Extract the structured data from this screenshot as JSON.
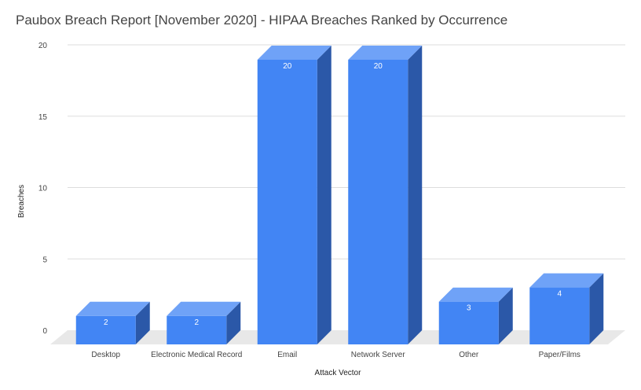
{
  "chart_data": {
    "type": "bar",
    "title": "Paubox Breach Report [November 2020] - HIPAA Breaches Ranked by Occurrence",
    "xlabel": "Attack Vector",
    "ylabel": "Breaches",
    "categories": [
      "Desktop",
      "Electronic Medical Record",
      "Email",
      "Network Server",
      "Other",
      "Paper/Films"
    ],
    "values": [
      2,
      2,
      20,
      20,
      3,
      4
    ],
    "ylim": [
      0,
      20
    ],
    "yticks": [
      0,
      5,
      10,
      15,
      20
    ],
    "grid": true,
    "three_d": true,
    "colors": {
      "front": "#4285f4",
      "top": "#6fa2f7",
      "side": "#2b58a8",
      "floor": "#e8e8e8",
      "grid": "#dddddd"
    }
  }
}
